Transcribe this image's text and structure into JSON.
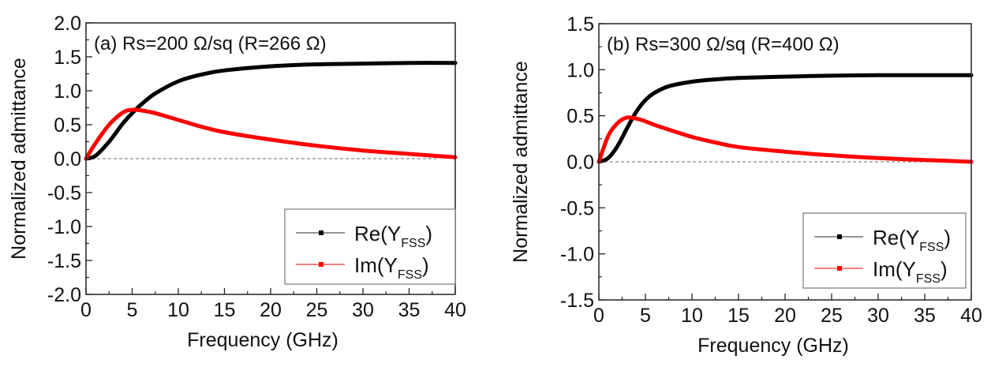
{
  "chart_data": [
    {
      "type": "line",
      "panel": "a",
      "annotation": "(a) Rs=200 Ω/sq (R=266 Ω)",
      "xlabel": "Frequency (GHz)",
      "ylabel": "Normalized admittance",
      "xlim": [
        0,
        40
      ],
      "ylim": [
        -2.0,
        2.0
      ],
      "xticks": [
        0,
        5,
        10,
        15,
        20,
        25,
        30,
        35,
        40
      ],
      "xtick_labels": [
        "0",
        "5",
        "10",
        "15",
        "20",
        "25",
        "30",
        "35",
        "40"
      ],
      "yticks": [
        -2.0,
        -1.5,
        -1.0,
        -0.5,
        0.0,
        0.5,
        1.0,
        1.5,
        2.0
      ],
      "ytick_labels": [
        "-2.0",
        "-1.5",
        "-1.0",
        "-0.5",
        "0.0",
        "0.5",
        "1.0",
        "1.5",
        "2.0"
      ],
      "grid": false,
      "reference_line": {
        "y": 0,
        "style": "dashed",
        "x_end": 38
      },
      "legend": {
        "placement": "bottom-right",
        "entries": [
          {
            "label": "Re(Y",
            "sub": "FSS",
            "close": ")"
          },
          {
            "label": "Im(Y",
            "sub": "FSS",
            "close": ")"
          }
        ]
      },
      "series": [
        {
          "name": "Re(Y_FSS)",
          "color": "#000000",
          "x": [
            0,
            1,
            2.5,
            4,
            5,
            6,
            7.5,
            10,
            12.5,
            15,
            20,
            25,
            30,
            35,
            40
          ],
          "y": [
            0,
            0.04,
            0.25,
            0.52,
            0.67,
            0.8,
            0.96,
            1.14,
            1.24,
            1.3,
            1.36,
            1.39,
            1.4,
            1.41,
            1.41
          ]
        },
        {
          "name": "Im(Y_FSS)",
          "color": "#ff0000",
          "x": [
            0,
            1,
            2.5,
            4,
            5,
            6,
            7.5,
            10,
            12.5,
            15,
            20,
            25,
            30,
            35,
            40
          ],
          "y": [
            0,
            0.22,
            0.5,
            0.68,
            0.72,
            0.71,
            0.67,
            0.57,
            0.47,
            0.39,
            0.28,
            0.19,
            0.12,
            0.07,
            0.02
          ]
        }
      ]
    },
    {
      "type": "line",
      "panel": "b",
      "annotation": "(b) Rs=300 Ω/sq (R=400 Ω)",
      "xlabel": "Frequency (GHz)",
      "ylabel": "Normalized admittance",
      "xlim": [
        0,
        40
      ],
      "ylim": [
        -1.5,
        1.5
      ],
      "xticks": [
        0,
        5,
        10,
        15,
        20,
        25,
        30,
        35,
        40
      ],
      "xtick_labels": [
        "0",
        "5",
        "10",
        "15",
        "20",
        "25",
        "30",
        "35",
        "40"
      ],
      "yticks": [
        -1.5,
        -1.0,
        -0.5,
        0.0,
        0.5,
        1.0,
        1.5
      ],
      "ytick_labels": [
        "-1.5",
        "-1.0",
        "-0.5",
        "0.0",
        "0.5",
        "1.0",
        "1.5"
      ],
      "grid": false,
      "reference_line": {
        "y": 0,
        "style": "dashed",
        "x_end": 40
      },
      "legend": {
        "placement": "bottom-right",
        "entries": [
          {
            "label": "Re(Y",
            "sub": "FSS",
            "close": ")"
          },
          {
            "label": "Im(Y",
            "sub": "FSS",
            "close": ")"
          }
        ]
      },
      "series": [
        {
          "name": "Re(Y_FSS)",
          "color": "#000000",
          "x": [
            0,
            1,
            2,
            3,
            4,
            5,
            6,
            7.5,
            10,
            12.5,
            15,
            20,
            25,
            30,
            35,
            40
          ],
          "y": [
            0,
            0.04,
            0.17,
            0.36,
            0.54,
            0.67,
            0.75,
            0.82,
            0.87,
            0.895,
            0.91,
            0.925,
            0.935,
            0.94,
            0.94,
            0.94
          ]
        },
        {
          "name": "Im(Y_FSS)",
          "color": "#ff0000",
          "x": [
            0,
            1,
            2,
            3,
            4,
            5,
            6,
            7.5,
            10,
            12.5,
            15,
            20,
            25,
            30,
            35,
            40
          ],
          "y": [
            0,
            0.28,
            0.42,
            0.48,
            0.47,
            0.44,
            0.4,
            0.35,
            0.27,
            0.21,
            0.16,
            0.11,
            0.07,
            0.04,
            0.02,
            0.0
          ]
        }
      ]
    }
  ]
}
